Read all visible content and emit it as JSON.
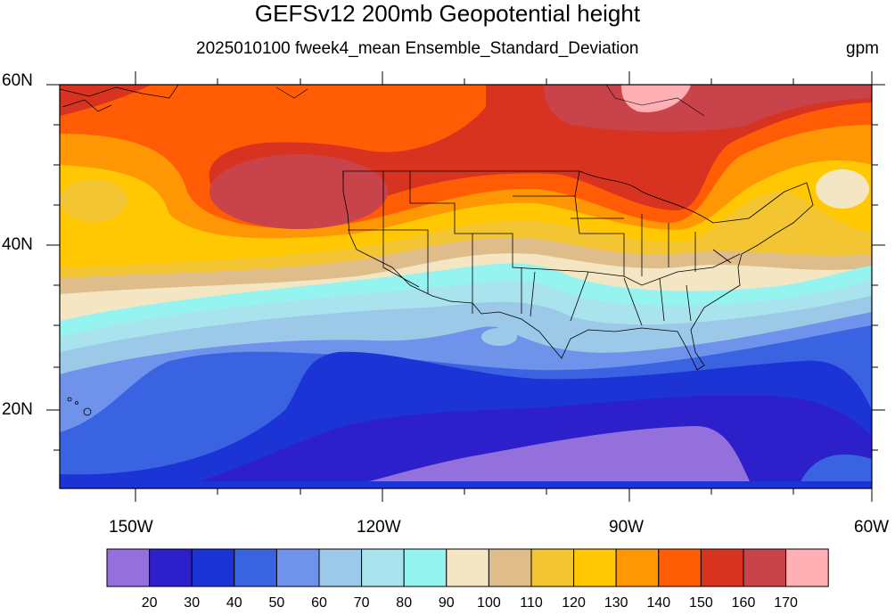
{
  "header": {
    "title": "GEFSv12 200mb Geopotential height",
    "subtitle": "2025010100 fweek4_mean Ensemble_Standard_Deviation",
    "units": "gpm"
  },
  "map": {
    "lat_labels": [
      "60N",
      "40N",
      "20N"
    ],
    "lon_labels": [
      "150W",
      "120W",
      "90W",
      "60W"
    ],
    "extent": {
      "lon": [
        -159,
        -60
      ],
      "lat": [
        10,
        60
      ]
    }
  },
  "legend": {
    "levels": [
      "20",
      "30",
      "40",
      "50",
      "60",
      "70",
      "80",
      "90",
      "100",
      "110",
      "120",
      "130",
      "140",
      "150",
      "160",
      "170"
    ],
    "colors": [
      "#9370db",
      "#2d1fc9",
      "#1c33d6",
      "#3a63e2",
      "#6f93ea",
      "#9dc9e8",
      "#a9e4ee",
      "#96f4f0",
      "#f5e6c3",
      "#dfbd8b",
      "#f3c532",
      "#ffc802",
      "#ff9705",
      "#ff5c05",
      "#d83321",
      "#c8444a",
      "#ffb0b4"
    ]
  }
}
